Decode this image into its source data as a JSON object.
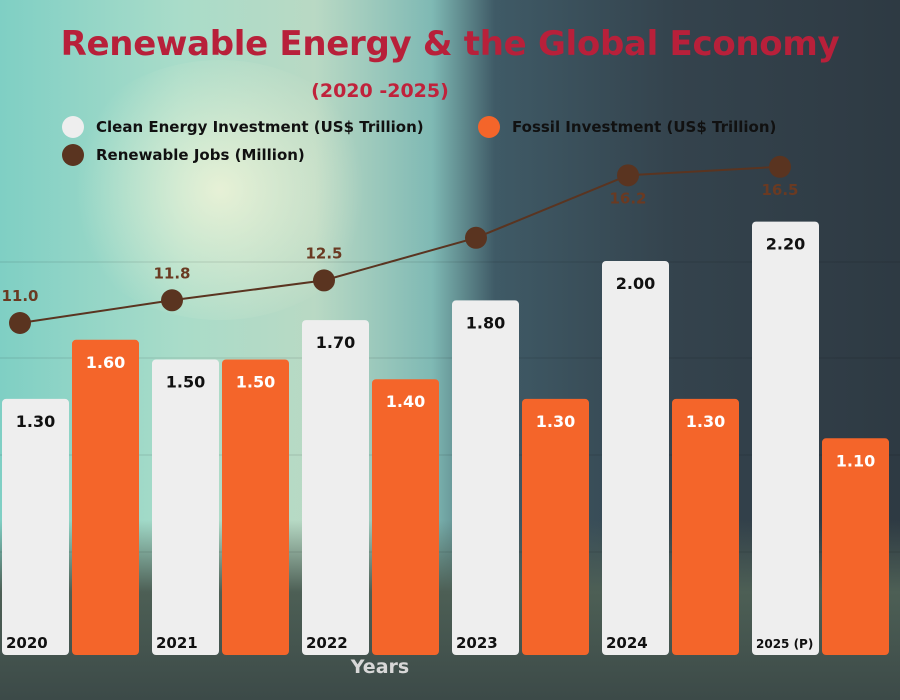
{
  "chart_data": {
    "type": "bar",
    "title": "Renewable Energy & the Global Economy",
    "subtitle": "(2020 -2025)",
    "xlabel": "Years",
    "categories": [
      "2020",
      "2021",
      "2022",
      "2023",
      "2024",
      "2025 (P)"
    ],
    "series": [
      {
        "name": "Clean Energy Investment (US$ Trillion)",
        "type": "bar",
        "color": "#eeeeee",
        "values": [
          1.3,
          1.5,
          1.7,
          1.8,
          2.0,
          2.2
        ],
        "labels": [
          "1.30",
          "1.50",
          "1.70",
          "1.80",
          "2.00",
          "2.20"
        ]
      },
      {
        "name": "Fossil Investment (US$ Trillion)",
        "type": "bar",
        "color": "#f4652a",
        "values": [
          1.6,
          1.5,
          1.4,
          1.3,
          1.3,
          1.1
        ],
        "labels": [
          "1.60",
          "1.50",
          "1.40",
          "1.30",
          "1.30",
          "1.10"
        ]
      },
      {
        "name": "Renewable Jobs (Million)",
        "type": "line",
        "color": "#5a3420",
        "values": [
          11.0,
          11.8,
          12.5,
          14.0,
          16.2,
          16.5
        ],
        "labels": [
          "11.0",
          "11.8",
          "12.5",
          "",
          "16.2",
          "16.5"
        ]
      }
    ],
    "ylim_bars": [
      0,
      2.2
    ],
    "ylim_line": [
      11.0,
      16.5
    ],
    "legend": "top"
  }
}
